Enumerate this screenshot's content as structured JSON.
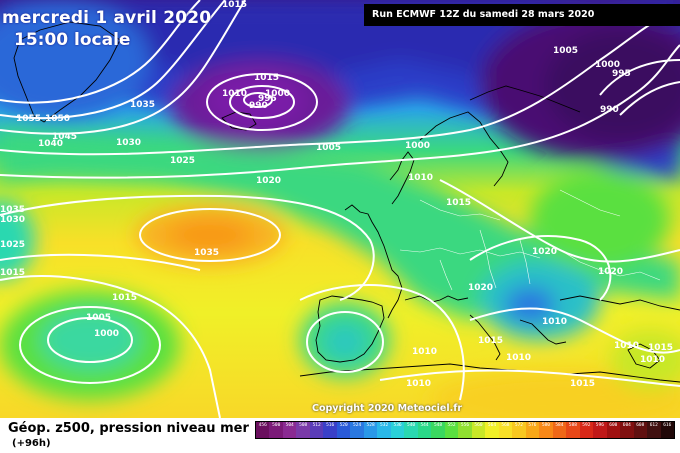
{
  "header": {
    "date": "mercredi 1 avril 2020",
    "time": "15:00 locale",
    "run": "Run ECMWF 12Z du samedi 28 mars 2020"
  },
  "footer": {
    "copyright": "Copyright 2020 Meteociel.fr",
    "legend_title": "Géop. z500, pression niveau mer",
    "legend_subtitle": "(+96h)"
  },
  "isobar_labels": [
    "1015",
    "1015",
    "1010",
    "1000",
    "995",
    "990",
    "1035",
    "1055",
    "1050",
    "1045",
    "1040",
    "1030",
    "1025",
    "1005",
    "1000",
    "1005",
    "1000",
    "995",
    "990",
    "1020",
    "1010",
    "1015",
    "1035",
    "1030",
    "1025",
    "1015",
    "1005",
    "1000",
    "1035",
    "1020",
    "1020",
    "1020",
    "1015",
    "1010",
    "1010",
    "1015",
    "1010",
    "1015",
    "1010",
    "1010",
    "1015",
    "1010"
  ],
  "colorbar": {
    "labels": [
      "456",
      "500",
      "504",
      "508",
      "512",
      "516",
      "520",
      "524",
      "528",
      "532",
      "536",
      "540",
      "544",
      "548",
      "552",
      "556",
      "560",
      "564",
      "568",
      "572",
      "576",
      "580",
      "584",
      "588",
      "592",
      "596",
      "600",
      "604",
      "608",
      "612",
      "616"
    ],
    "colors": [
      "#6a0f5e",
      "#7b1a78",
      "#8a2a92",
      "#7a3aa8",
      "#5a3cb8",
      "#3a40c8",
      "#2a5ad8",
      "#2a78e0",
      "#2a98e8",
      "#2ab8e8",
      "#2ad0d8",
      "#2ad8b0",
      "#2ad888",
      "#3ad860",
      "#5ae040",
      "#90e030",
      "#c8e828",
      "#f0f028",
      "#f8e028",
      "#f8c820",
      "#f8a818",
      "#f88818",
      "#f06818",
      "#e84818",
      "#d82818",
      "#c01818",
      "#a01010",
      "#801010",
      "#601010",
      "#401010",
      "#200808"
    ]
  }
}
